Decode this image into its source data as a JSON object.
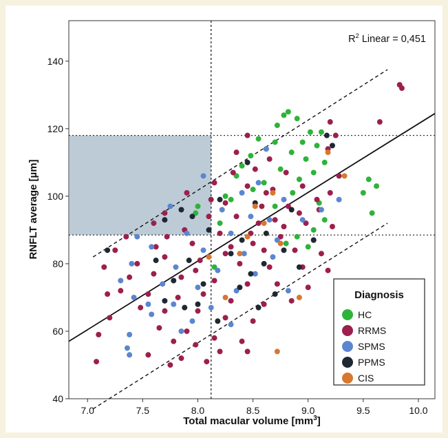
{
  "colors": {
    "page_background": "#f7f1df",
    "plot_background": "#ffffff",
    "highlight_region": "#bccbd6",
    "HC": "#2eb33a",
    "RRMS": "#9c1f4d",
    "SPMS": "#5b86cf",
    "PPMS": "#1e2833",
    "CIS": "#d9772f"
  },
  "chart_data": {
    "type": "scatter",
    "xlabel": "Total macular volume [mm",
    "xlabel_sup": "3",
    "xlabel_end": "]",
    "ylabel": "RNFLT average [µm]",
    "xlim": [
      6.83,
      10.15
    ],
    "ylim": [
      40,
      152
    ],
    "x_ticks": [
      7.0,
      7.5,
      8.0,
      8.5,
      9.0,
      9.5,
      10.0
    ],
    "x_tick_labels": [
      "7.0",
      "7.5",
      "8.0",
      "8.5",
      "9.0",
      "9.5",
      "10.0"
    ],
    "y_ticks": [
      40,
      60,
      80,
      100,
      120,
      140
    ],
    "y_tick_labels": [
      "40",
      "60",
      "80",
      "100",
      "120",
      "140"
    ],
    "grid": false,
    "annotation": {
      "r": "R",
      "sup": "2",
      "rest": " Linear = 0,451"
    },
    "fit_line": {
      "x": [
        6.83,
        10.15
      ],
      "y": [
        57,
        124.5
      ]
    },
    "confidence_bands": [
      {
        "x": [
          7.05,
          9.72
        ],
        "y": [
          82,
          137.5
        ]
      },
      {
        "x": [
          7.05,
          9.72
        ],
        "y": [
          37,
          92
        ]
      }
    ],
    "vertical_reference": 8.12,
    "horizontal_references": [
      118,
      88.5
    ],
    "shaded_region": {
      "x": [
        6.83,
        8.12
      ],
      "y": [
        88.5,
        118
      ]
    },
    "legend": {
      "title": "Diagnosis",
      "position": "bottom-right",
      "entries": [
        "HC",
        "RRMS",
        "SPMS",
        "PPMS",
        "CIS"
      ]
    },
    "series": [
      {
        "name": "HC",
        "points": [
          [
            8.82,
            125
          ],
          [
            8.78,
            124
          ],
          [
            8.9,
            123
          ],
          [
            8.72,
            121
          ],
          [
            9.02,
            119
          ],
          [
            9.12,
            119
          ],
          [
            8.55,
            117
          ],
          [
            8.7,
            116
          ],
          [
            8.95,
            116
          ],
          [
            9.08,
            115
          ],
          [
            8.62,
            114
          ],
          [
            8.85,
            113
          ],
          [
            8.48,
            112
          ],
          [
            8.98,
            111
          ],
          [
            9.15,
            110
          ],
          [
            8.4,
            109
          ],
          [
            8.75,
            108
          ],
          [
            9.05,
            107
          ],
          [
            8.35,
            106
          ],
          [
            8.92,
            105
          ],
          [
            9.55,
            105
          ],
          [
            9.62,
            103
          ],
          [
            8.5,
            102
          ],
          [
            8.86,
            101
          ],
          [
            9.5,
            101
          ],
          [
            8.3,
            99
          ],
          [
            9.1,
            98
          ],
          [
            8.7,
            97
          ],
          [
            9.58,
            95
          ],
          [
            9.15,
            93
          ],
          [
            8.2,
            92
          ],
          [
            9.05,
            90
          ],
          [
            8.9,
            88
          ],
          [
            8.8,
            86
          ],
          [
            9.0,
            85
          ],
          [
            7.98,
            95
          ],
          [
            8.15,
            79
          ],
          [
            8.0,
            97
          ],
          [
            8.6,
            104
          ],
          [
            8.25,
            100
          ]
        ]
      },
      {
        "name": "RRMS",
        "points": [
          [
            9.83,
            133
          ],
          [
            9.85,
            132
          ],
          [
            9.2,
            122
          ],
          [
            9.65,
            122
          ],
          [
            8.45,
            118
          ],
          [
            9.25,
            118
          ],
          [
            8.35,
            113
          ],
          [
            8.65,
            111
          ],
          [
            9.18,
            114
          ],
          [
            8.52,
            108
          ],
          [
            8.8,
            107
          ],
          [
            9.28,
            106
          ],
          [
            8.15,
            104
          ],
          [
            8.45,
            103
          ],
          [
            8.68,
            102
          ],
          [
            8.95,
            103
          ],
          [
            9.2,
            101
          ],
          [
            7.9,
            101
          ],
          [
            8.25,
            98
          ],
          [
            8.58,
            97
          ],
          [
            8.82,
            97
          ],
          [
            9.1,
            96
          ],
          [
            7.7,
            95
          ],
          [
            8.1,
            94
          ],
          [
            8.35,
            94
          ],
          [
            8.7,
            93
          ],
          [
            8.98,
            92
          ],
          [
            9.22,
            91
          ],
          [
            7.6,
            92
          ],
          [
            7.88,
            90
          ],
          [
            8.2,
            89
          ],
          [
            8.48,
            89
          ],
          [
            8.75,
            88
          ],
          [
            9.05,
            87
          ],
          [
            7.35,
            88
          ],
          [
            7.62,
            85
          ],
          [
            7.95,
            86
          ],
          [
            8.3,
            85
          ],
          [
            8.6,
            84
          ],
          [
            8.88,
            84
          ],
          [
            9.12,
            83
          ],
          [
            7.25,
            84
          ],
          [
            7.45,
            80
          ],
          [
            7.7,
            82
          ],
          [
            8.02,
            81
          ],
          [
            8.38,
            80
          ],
          [
            8.65,
            79
          ],
          [
            8.95,
            79
          ],
          [
            9.18,
            78
          ],
          [
            7.15,
            79
          ],
          [
            7.38,
            76
          ],
          [
            7.6,
            77
          ],
          [
            7.85,
            76
          ],
          [
            8.15,
            75
          ],
          [
            8.45,
            74
          ],
          [
            8.72,
            74
          ],
          [
            9.0,
            73
          ],
          [
            7.3,
            72
          ],
          [
            7.55,
            71
          ],
          [
            7.82,
            70
          ],
          [
            8.05,
            71
          ],
          [
            8.3,
            69
          ],
          [
            8.6,
            68
          ],
          [
            8.85,
            69
          ],
          [
            7.48,
            67
          ],
          [
            7.7,
            66
          ],
          [
            8.0,
            66
          ],
          [
            8.25,
            64
          ],
          [
            8.5,
            63
          ],
          [
            7.2,
            64
          ],
          [
            7.65,
            61
          ],
          [
            7.9,
            60
          ],
          [
            8.15,
            58
          ],
          [
            8.4,
            57
          ],
          [
            7.1,
            59
          ],
          [
            7.78,
            57
          ],
          [
            7.98,
            56
          ],
          [
            8.2,
            54
          ],
          [
            8.45,
            54
          ],
          [
            7.75,
            50
          ],
          [
            7.85,
            52
          ],
          [
            8.08,
            51
          ],
          [
            7.08,
            51
          ],
          [
            7.55,
            53
          ],
          [
            7.18,
            71
          ],
          [
            8.55,
            92
          ],
          [
            8.32,
            107
          ],
          [
            8.62,
            101
          ],
          [
            7.98,
            78
          ],
          [
            8.78,
            91
          ],
          [
            8.92,
            95
          ],
          [
            8.25,
            83
          ],
          [
            7.72,
            88
          ],
          [
            8.12,
            99
          ],
          [
            8.5,
            86
          ],
          [
            9.08,
            99
          ]
        ]
      },
      {
        "name": "SPMS",
        "points": [
          [
            8.62,
            114
          ],
          [
            8.05,
            106
          ],
          [
            8.55,
            104
          ],
          [
            8.78,
            99
          ],
          [
            9.28,
            99
          ],
          [
            7.75,
            97
          ],
          [
            8.22,
            96
          ],
          [
            8.48,
            94
          ],
          [
            8.95,
            93
          ],
          [
            7.45,
            88
          ],
          [
            7.9,
            89
          ],
          [
            8.3,
            89
          ],
          [
            8.72,
            87
          ],
          [
            7.58,
            85
          ],
          [
            8.05,
            84
          ],
          [
            8.42,
            83
          ],
          [
            8.68,
            82
          ],
          [
            7.4,
            80
          ],
          [
            7.8,
            79
          ],
          [
            8.18,
            78
          ],
          [
            8.52,
            77
          ],
          [
            7.3,
            75
          ],
          [
            7.68,
            74
          ],
          [
            8.0,
            73
          ],
          [
            8.35,
            72
          ],
          [
            8.82,
            72
          ],
          [
            7.42,
            70
          ],
          [
            7.78,
            68
          ],
          [
            8.12,
            67
          ],
          [
            7.58,
            65
          ],
          [
            7.95,
            63
          ],
          [
            8.3,
            62
          ],
          [
            7.38,
            59
          ],
          [
            7.85,
            60
          ],
          [
            7.36,
            55
          ],
          [
            7.38,
            53
          ],
          [
            7.55,
            68
          ],
          [
            8.65,
            93
          ],
          [
            9.12,
            96
          ],
          [
            8.4,
            101
          ]
        ]
      },
      {
        "name": "PPMS",
        "points": [
          [
            9.17,
            118
          ],
          [
            9.22,
            115
          ],
          [
            8.45,
            110
          ],
          [
            7.18,
            84
          ],
          [
            7.7,
            93
          ],
          [
            7.85,
            96
          ],
          [
            7.95,
            94
          ],
          [
            8.2,
            99
          ],
          [
            8.52,
            98
          ],
          [
            8.85,
            96
          ],
          [
            8.1,
            90
          ],
          [
            8.4,
            87
          ],
          [
            8.62,
            89
          ],
          [
            9.05,
            87
          ],
          [
            7.62,
            81
          ],
          [
            7.92,
            81
          ],
          [
            8.3,
            83
          ],
          [
            8.6,
            80
          ],
          [
            8.92,
            79
          ],
          [
            7.78,
            75
          ],
          [
            8.05,
            74
          ],
          [
            8.38,
            73
          ],
          [
            8.7,
            71
          ],
          [
            7.7,
            69
          ],
          [
            8.0,
            68
          ],
          [
            8.55,
            67
          ],
          [
            8.18,
            63
          ],
          [
            7.88,
            67
          ],
          [
            8.48,
            77
          ],
          [
            8.78,
            84
          ]
        ]
      },
      {
        "name": "CIS",
        "points": [
          [
            9.18,
            113
          ],
          [
            9.33,
            106
          ],
          [
            8.68,
            101
          ],
          [
            8.52,
            97
          ],
          [
            8.6,
            92
          ],
          [
            8.45,
            88
          ],
          [
            8.75,
            86
          ],
          [
            8.38,
            83
          ],
          [
            8.1,
            82
          ],
          [
            8.92,
            70
          ],
          [
            8.72,
            54
          ],
          [
            8.25,
            70
          ]
        ]
      }
    ]
  }
}
